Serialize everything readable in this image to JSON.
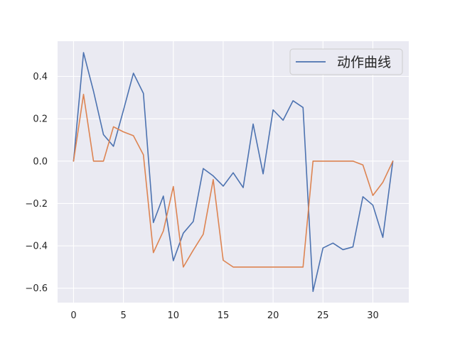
{
  "chart_data": {
    "type": "line",
    "title": "",
    "xlabel": "",
    "ylabel": "",
    "xlim": [
      -1.6,
      33.6
    ],
    "ylim": [
      -0.668,
      0.566
    ],
    "xticks": [
      0,
      5,
      10,
      15,
      20,
      25,
      30
    ],
    "yticks": [
      -0.6,
      -0.4,
      -0.2,
      0.0,
      0.2,
      0.4
    ],
    "xtick_labels": [
      "0",
      "5",
      "10",
      "15",
      "20",
      "25",
      "30"
    ],
    "ytick_labels": [
      "−0.6",
      "−0.4",
      "−0.2",
      "0.0",
      "0.2",
      "0.4"
    ],
    "grid": true,
    "legend_position": "upper right",
    "legend_entries": [
      "动作曲线"
    ],
    "background": "#eaeaf2",
    "x": [
      0,
      1,
      2,
      3,
      4,
      5,
      6,
      7,
      8,
      9,
      10,
      11,
      12,
      13,
      14,
      15,
      16,
      17,
      18,
      19,
      20,
      21,
      22,
      23,
      24,
      25,
      26,
      27,
      28,
      29,
      30,
      31,
      32
    ],
    "series": [
      {
        "name": "动作曲线",
        "color": "#4c72b0",
        "values": [
          0.0,
          0.512,
          0.33,
          0.125,
          0.07,
          0.24,
          0.415,
          0.32,
          -0.29,
          -0.165,
          -0.47,
          -0.34,
          -0.285,
          -0.035,
          -0.07,
          -0.118,
          -0.055,
          -0.125,
          0.175,
          -0.06,
          0.242,
          0.193,
          0.285,
          0.253,
          -0.615,
          -0.41,
          -0.387,
          -0.418,
          -0.405,
          -0.168,
          -0.208,
          -0.36,
          0.0
        ]
      },
      {
        "color": "#dd8452",
        "values": [
          0.0,
          0.315,
          0.0,
          0.0,
          0.162,
          0.138,
          0.12,
          0.03,
          -0.432,
          -0.33,
          -0.12,
          -0.5,
          -0.42,
          -0.345,
          -0.087,
          -0.468,
          -0.5,
          -0.5,
          -0.5,
          -0.5,
          -0.5,
          -0.5,
          -0.5,
          -0.5,
          0.0,
          0.0,
          0.0,
          0.0,
          0.0,
          -0.018,
          -0.162,
          -0.1,
          0.0
        ]
      }
    ]
  }
}
